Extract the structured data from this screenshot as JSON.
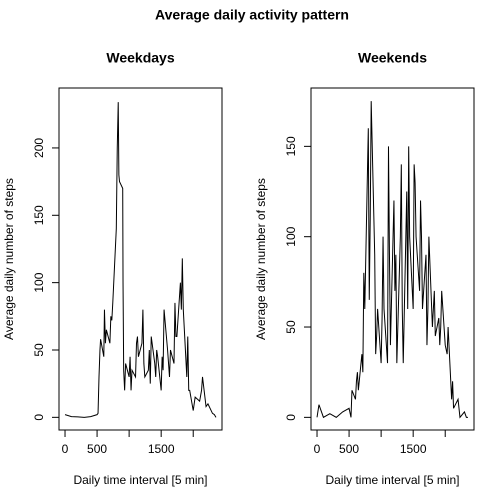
{
  "title": "Average daily activity pattern",
  "chart_data": [
    {
      "type": "line",
      "title": "Weekdays",
      "xlabel": "Daily time interval [5 min]",
      "ylabel": "Average daily number of steps",
      "color": "#000000",
      "x": [
        0,
        100,
        200,
        300,
        400,
        500,
        515,
        530,
        545,
        555,
        605,
        615,
        630,
        645,
        700,
        715,
        730,
        745,
        800,
        815,
        830,
        840,
        850,
        900,
        905,
        915,
        930,
        945,
        1000,
        1015,
        1030,
        1045,
        1100,
        1115,
        1130,
        1145,
        1200,
        1215,
        1230,
        1245,
        1300,
        1315,
        1330,
        1345,
        1400,
        1415,
        1430,
        1445,
        1500,
        1515,
        1530,
        1545,
        1600,
        1615,
        1630,
        1645,
        1700,
        1715,
        1730,
        1745,
        1800,
        1815,
        1830,
        1845,
        1900,
        1915,
        1930,
        1945,
        2000,
        2030,
        2100,
        2130,
        2145,
        2200,
        2230,
        2300,
        2330,
        2355
      ],
      "values": [
        2,
        0.5,
        0.3,
        0,
        0.5,
        2,
        3,
        30,
        50,
        58,
        45,
        80,
        55,
        65,
        55,
        75,
        72,
        85,
        140,
        200,
        234,
        180,
        175,
        170,
        100,
        35,
        20,
        40,
        30,
        45,
        20,
        35,
        30,
        55,
        60,
        45,
        55,
        80,
        40,
        30,
        35,
        50,
        25,
        60,
        40,
        30,
        50,
        45,
        20,
        45,
        35,
        80,
        50,
        40,
        30,
        50,
        40,
        85,
        60,
        60,
        100,
        80,
        118,
        80,
        30,
        60,
        20,
        20,
        5,
        15,
        12,
        20,
        30,
        8,
        10,
        3,
        2,
        0
      ],
      "xlim": [
        -94,
        2449
      ],
      "ylim": [
        -9.4,
        244.5
      ],
      "xticks": [
        0,
        500,
        {
          "value": 1000,
          "label": null
        },
        1500,
        {
          "value": 2000,
          "label": null
        }
      ],
      "yticks": [
        0,
        50,
        100,
        150,
        200
      ]
    },
    {
      "type": "line",
      "title": "Weekends",
      "xlabel": "Daily time interval [5 min]",
      "ylabel": "Average daily number of steps",
      "color": "#000000",
      "x": [
        0,
        30,
        100,
        200,
        300,
        400,
        500,
        530,
        545,
        600,
        615,
        630,
        645,
        700,
        715,
        730,
        745,
        800,
        815,
        830,
        845,
        900,
        915,
        930,
        945,
        1000,
        1015,
        1030,
        1045,
        1100,
        1115,
        1130,
        1145,
        1200,
        1215,
        1230,
        1245,
        1300,
        1315,
        1330,
        1345,
        1400,
        1415,
        1430,
        1445,
        1500,
        1515,
        1530,
        1545,
        1600,
        1615,
        1630,
        1645,
        1700,
        1715,
        1730,
        1745,
        1800,
        1815,
        1830,
        1845,
        1900,
        1915,
        1930,
        1945,
        2000,
        2030,
        2045,
        2100,
        2115,
        2130,
        2200,
        2230,
        2300,
        2330,
        2355
      ],
      "values": [
        0,
        7,
        0,
        2,
        0,
        3,
        5,
        0,
        15,
        10,
        20,
        25,
        15,
        35,
        25,
        80,
        60,
        160,
        65,
        110,
        175,
        90,
        35,
        45,
        60,
        30,
        55,
        100,
        60,
        30,
        150,
        90,
        40,
        120,
        70,
        90,
        30,
        100,
        140,
        60,
        30,
        125,
        60,
        150,
        100,
        60,
        140,
        130,
        100,
        70,
        120,
        100,
        60,
        90,
        40,
        60,
        100,
        50,
        60,
        70,
        45,
        55,
        40,
        50,
        70,
        40,
        35,
        50,
        10,
        20,
        5,
        10,
        0,
        3,
        0,
        0
      ],
      "xlim": [
        -94,
        2449
      ],
      "ylim": [
        -7,
        182.3
      ],
      "xticks": [
        0,
        500,
        {
          "value": 1000,
          "label": null
        },
        1500,
        {
          "value": 2000,
          "label": null
        }
      ],
      "yticks": [
        0,
        50,
        100,
        150
      ]
    }
  ]
}
